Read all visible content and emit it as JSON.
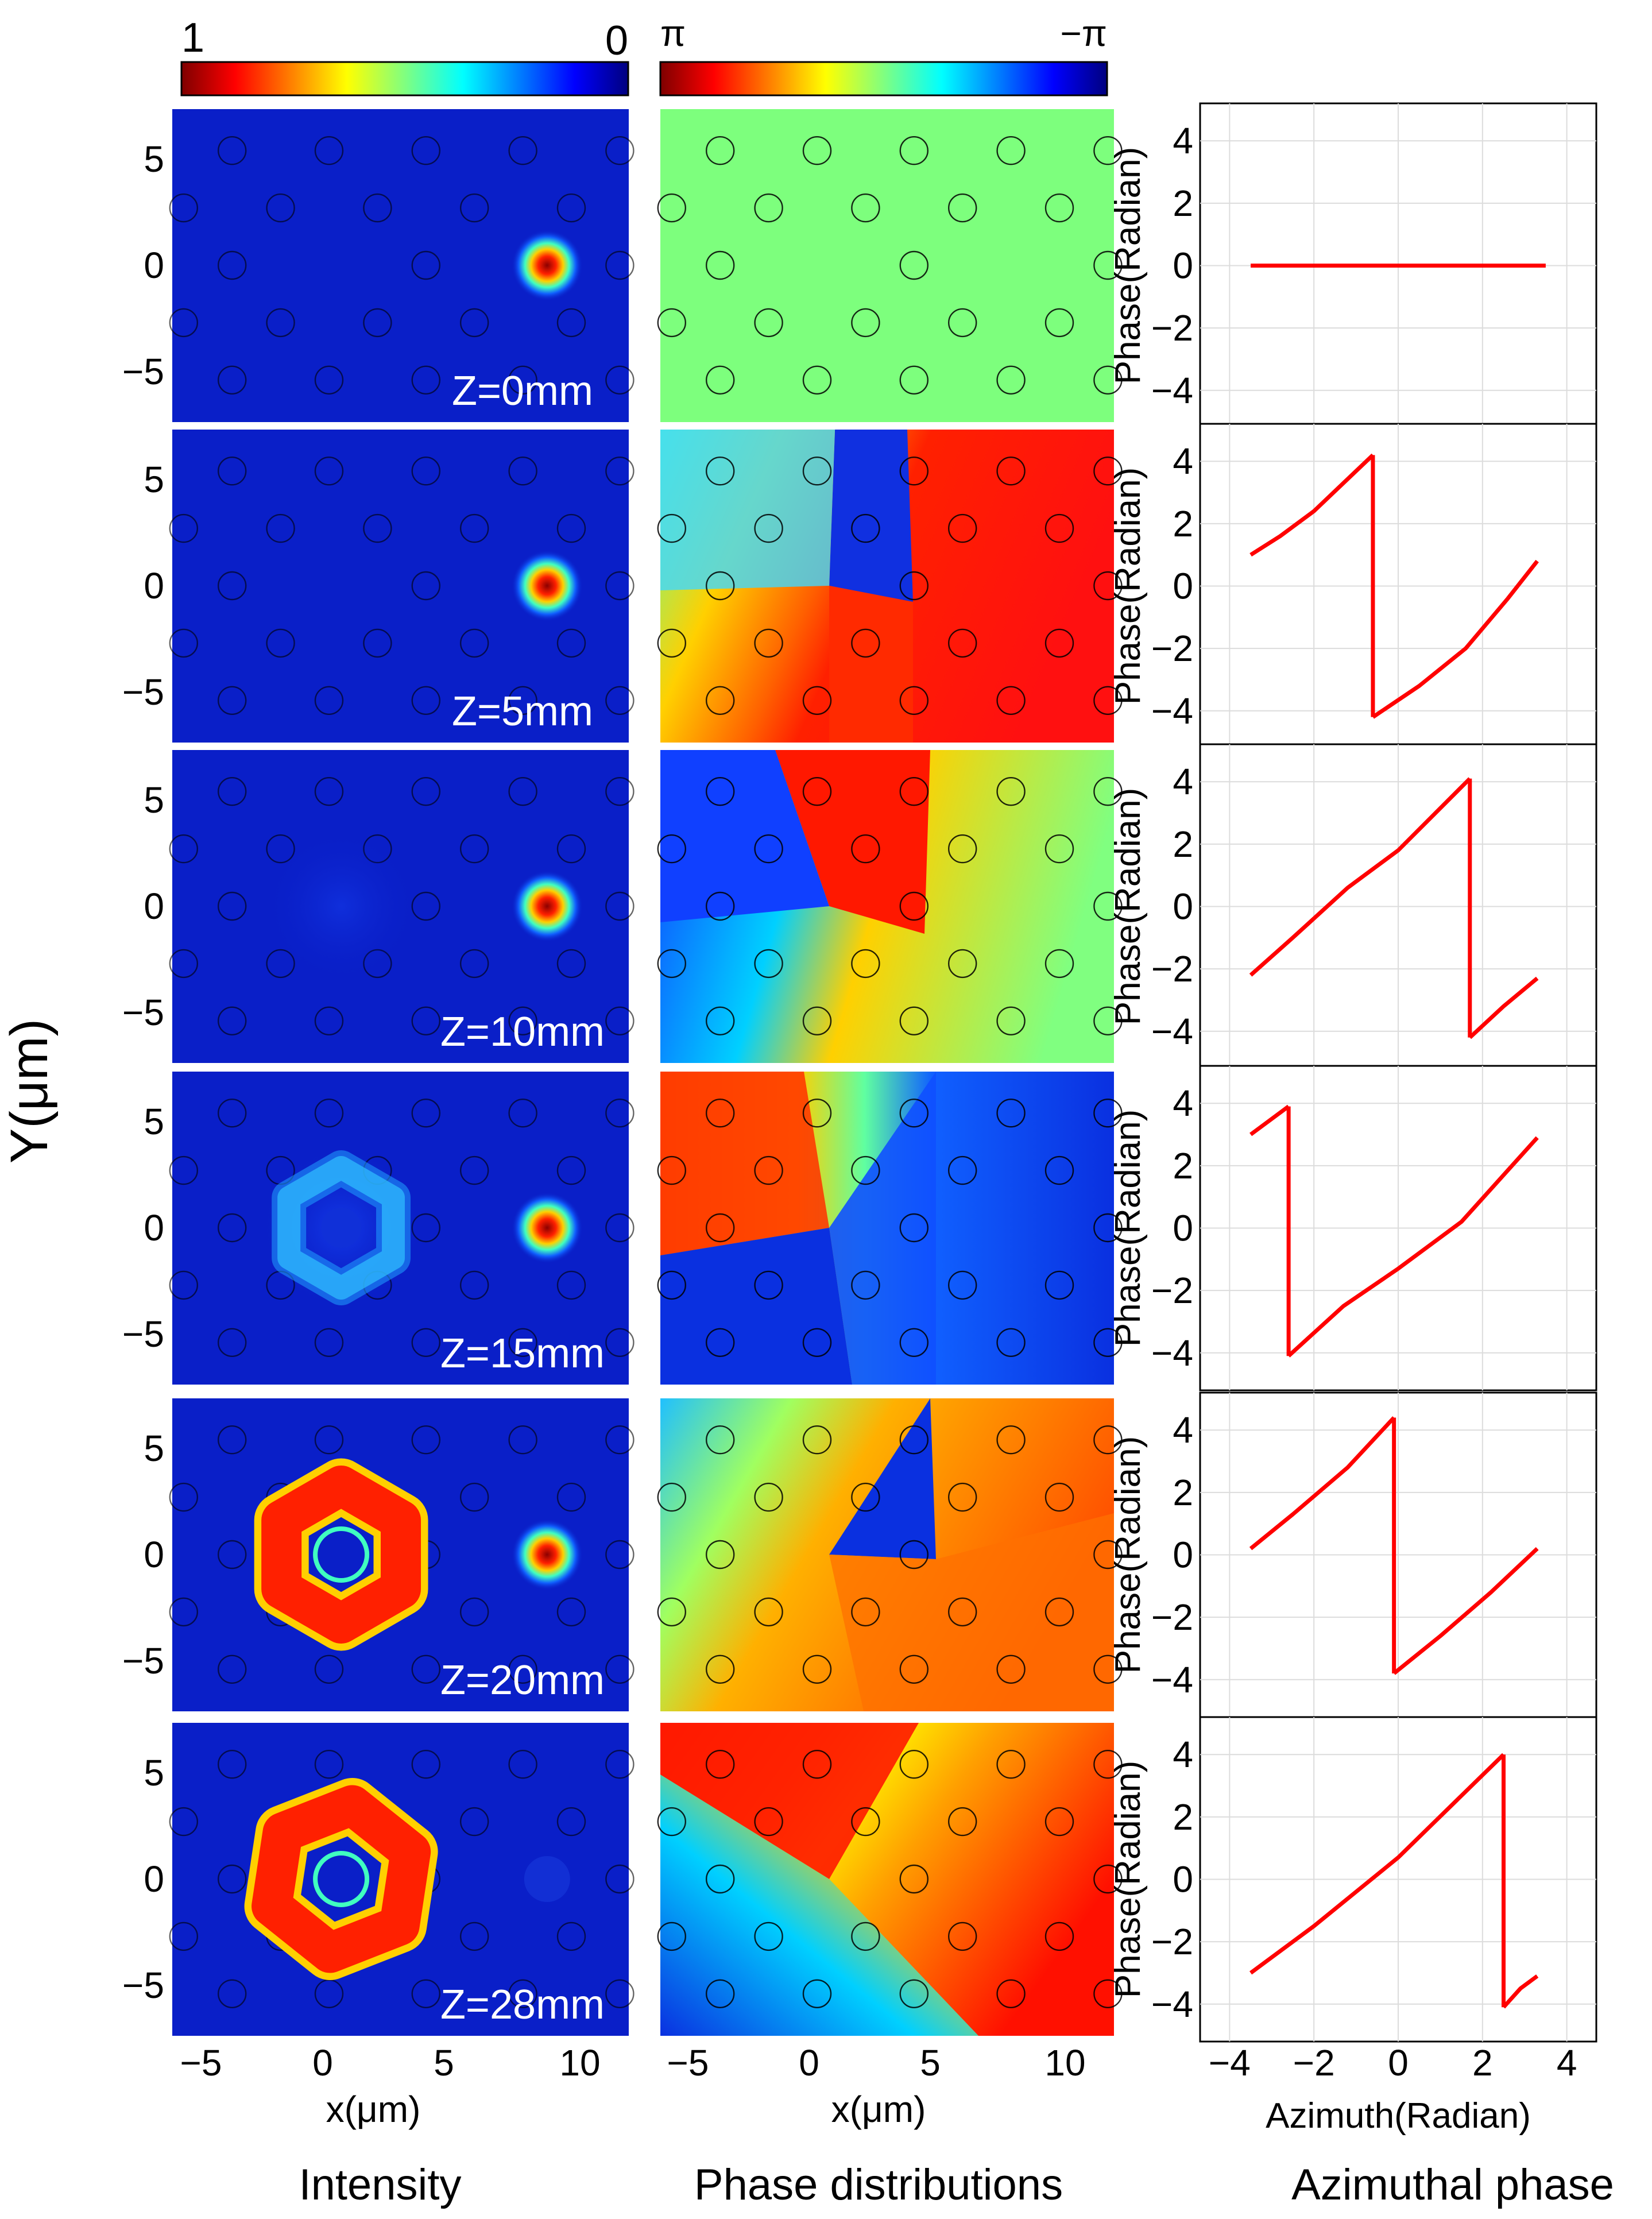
{
  "colorbars": {
    "intensity": {
      "left_label": "1",
      "right_label": "0"
    },
    "phase": {
      "left_label": "π",
      "right_label": "−π"
    }
  },
  "y_axis_label": "Y(μm)",
  "x_axis_label": "x(μm)",
  "x_ticks": [
    "−5",
    "0",
    "5",
    "10"
  ],
  "y_ticks": [
    "5",
    "0",
    "−5"
  ],
  "plot_y_label": "Phase(Radian)",
  "plot_x_label": "Azimuth(Radian)",
  "plot_x_ticks": [
    "−4",
    "−2",
    "0",
    "2",
    "4"
  ],
  "plot_y_ticks": [
    "4",
    "2",
    "0",
    "−2",
    "−4"
  ],
  "column_titles": {
    "intensity": "Intensity",
    "phase": "Phase distributions",
    "azimuthal": "Azimuthal phase"
  },
  "rows": [
    {
      "z_label": "Z=0mm"
    },
    {
      "z_label": "Z=5mm"
    },
    {
      "z_label": "Z=10mm"
    },
    {
      "z_label": "Z=15mm"
    },
    {
      "z_label": "Z=20mm"
    },
    {
      "z_label": "Z=28mm"
    }
  ],
  "chart_data": [
    {
      "type": "line",
      "title": "Z=0mm",
      "xlabel": "Azimuth(Radian)",
      "ylabel": "Phase(Radian)",
      "xlim": [
        -4.7,
        4.7
      ],
      "ylim": [
        -5.2,
        5.2
      ],
      "series": [
        {
          "name": "azimuthal phase",
          "segments": [
            [
              [
                -3.5,
                0
              ],
              [
                3.5,
                0
              ]
            ]
          ]
        }
      ]
    },
    {
      "type": "line",
      "title": "Z=5mm",
      "xlabel": "Azimuth(Radian)",
      "ylabel": "Phase(Radian)",
      "xlim": [
        -4.7,
        4.7
      ],
      "ylim": [
        -5.2,
        5.2
      ],
      "series": [
        {
          "name": "azimuthal phase",
          "segments": [
            [
              [
                -3.5,
                1.0
              ],
              [
                -2.8,
                1.6
              ],
              [
                -2.0,
                2.4
              ],
              [
                -1.3,
                3.3
              ],
              [
                -0.6,
                4.2
              ]
            ],
            [
              [
                -0.6,
                -4.2
              ],
              [
                0.5,
                -3.2
              ],
              [
                1.6,
                -2.0
              ],
              [
                2.6,
                -0.4
              ],
              [
                3.3,
                0.8
              ]
            ]
          ]
        }
      ]
    },
    {
      "type": "line",
      "title": "Z=10mm",
      "xlabel": "Azimuth(Radian)",
      "ylabel": "Phase(Radian)",
      "xlim": [
        -4.7,
        4.7
      ],
      "ylim": [
        -5.2,
        5.2
      ],
      "series": [
        {
          "name": "azimuthal phase",
          "segments": [
            [
              [
                -3.5,
                -2.2
              ],
              [
                -2.5,
                -1.0
              ],
              [
                -1.2,
                0.6
              ],
              [
                0,
                1.8
              ],
              [
                1.7,
                4.1
              ]
            ],
            [
              [
                1.7,
                -4.2
              ],
              [
                2.5,
                -3.2
              ],
              [
                3.3,
                -2.3
              ]
            ]
          ]
        }
      ]
    },
    {
      "type": "line",
      "title": "Z=15mm",
      "xlabel": "Azimuth(Radian)",
      "ylabel": "Phase(Radian)",
      "xlim": [
        -4.7,
        4.7
      ],
      "ylim": [
        -5.2,
        5.2
      ],
      "series": [
        {
          "name": "azimuthal phase",
          "segments": [
            [
              [
                -3.5,
                3.0
              ],
              [
                -2.6,
                3.9
              ]
            ],
            [
              [
                -2.6,
                -4.1
              ],
              [
                -1.3,
                -2.5
              ],
              [
                0,
                -1.3
              ],
              [
                1.5,
                0.2
              ],
              [
                3.3,
                2.9
              ]
            ]
          ]
        }
      ]
    },
    {
      "type": "line",
      "title": "Z=20mm",
      "xlabel": "Azimuth(Radian)",
      "ylabel": "Phase(Radian)",
      "xlim": [
        -4.7,
        4.7
      ],
      "ylim": [
        -5.2,
        5.2
      ],
      "series": [
        {
          "name": "azimuthal phase",
          "segments": [
            [
              [
                -3.5,
                0.2
              ],
              [
                -2.5,
                1.3
              ],
              [
                -1.2,
                2.8
              ],
              [
                -0.1,
                4.4
              ]
            ],
            [
              [
                -0.1,
                -3.8
              ],
              [
                1.0,
                -2.6
              ],
              [
                2.2,
                -1.2
              ],
              [
                3.3,
                0.2
              ]
            ]
          ]
        }
      ]
    },
    {
      "type": "line",
      "title": "Z=28mm",
      "xlabel": "Azimuth(Radian)",
      "ylabel": "Phase(Radian)",
      "xlim": [
        -4.7,
        4.7
      ],
      "ylim": [
        -5.2,
        5.2
      ],
      "series": [
        {
          "name": "azimuthal phase",
          "segments": [
            [
              [
                -3.5,
                -3.0
              ],
              [
                -2.0,
                -1.5
              ],
              [
                0,
                0.7
              ],
              [
                2.5,
                4.0
              ]
            ],
            [
              [
                2.5,
                -4.1
              ],
              [
                2.9,
                -3.5
              ],
              [
                3.3,
                -3.1
              ]
            ]
          ]
        }
      ]
    }
  ]
}
